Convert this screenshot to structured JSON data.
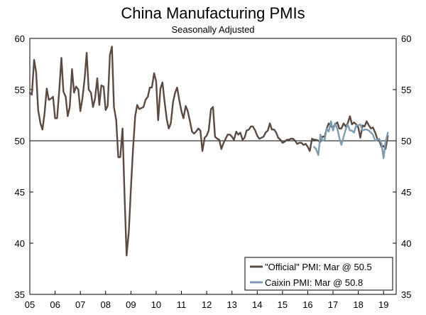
{
  "chart_data": {
    "type": "line",
    "title": "China Manufacturing PMIs",
    "subtitle": "Seasonally Adjusted",
    "xlabel": "",
    "ylabel": "",
    "ylim": [
      35,
      60
    ],
    "yticks": [
      35,
      40,
      45,
      50,
      55,
      60
    ],
    "xlim": [
      2005,
      2019.5
    ],
    "xticks": [
      2005,
      2006,
      2007,
      2008,
      2009,
      2010,
      2011,
      2012,
      2013,
      2014,
      2015,
      2016,
      2017,
      2018,
      2019
    ],
    "xtick_labels": [
      "05",
      "06",
      "07",
      "08",
      "09",
      "10",
      "11",
      "12",
      "13",
      "14",
      "15",
      "16",
      "17",
      "18",
      "19"
    ],
    "reference_line": 50,
    "legend_position": "bottom-right",
    "series": [
      {
        "name": "\"Official\" PMI: Mar @ 50.5",
        "color": "#5a4a42",
        "x": [
          2005.0,
          2005.08,
          2005.17,
          2005.25,
          2005.33,
          2005.42,
          2005.5,
          2005.58,
          2005.67,
          2005.75,
          2005.83,
          2005.92,
          2006.0,
          2006.08,
          2006.17,
          2006.25,
          2006.33,
          2006.42,
          2006.5,
          2006.58,
          2006.67,
          2006.75,
          2006.83,
          2006.92,
          2007.0,
          2007.08,
          2007.17,
          2007.25,
          2007.33,
          2007.42,
          2007.5,
          2007.58,
          2007.67,
          2007.75,
          2007.83,
          2007.92,
          2008.0,
          2008.08,
          2008.17,
          2008.25,
          2008.33,
          2008.42,
          2008.5,
          2008.58,
          2008.67,
          2008.75,
          2008.83,
          2008.92,
          2009.0,
          2009.08,
          2009.17,
          2009.25,
          2009.33,
          2009.42,
          2009.5,
          2009.58,
          2009.67,
          2009.75,
          2009.83,
          2009.92,
          2010.0,
          2010.08,
          2010.17,
          2010.25,
          2010.33,
          2010.42,
          2010.5,
          2010.58,
          2010.67,
          2010.75,
          2010.83,
          2010.92,
          2011.0,
          2011.08,
          2011.17,
          2011.25,
          2011.33,
          2011.42,
          2011.5,
          2011.58,
          2011.67,
          2011.75,
          2011.83,
          2011.92,
          2012.0,
          2012.08,
          2012.17,
          2012.25,
          2012.33,
          2012.42,
          2012.5,
          2012.58,
          2012.67,
          2012.75,
          2012.83,
          2012.92,
          2013.0,
          2013.08,
          2013.17,
          2013.25,
          2013.33,
          2013.42,
          2013.5,
          2013.58,
          2013.67,
          2013.75,
          2013.83,
          2013.92,
          2014.0,
          2014.08,
          2014.17,
          2014.25,
          2014.33,
          2014.42,
          2014.5,
          2014.58,
          2014.67,
          2014.75,
          2014.83,
          2014.92,
          2015.0,
          2015.08,
          2015.17,
          2015.25,
          2015.33,
          2015.42,
          2015.5,
          2015.58,
          2015.67,
          2015.75,
          2015.83,
          2015.92,
          2016.0,
          2016.08,
          2016.17,
          2016.25,
          2016.33,
          2016.42,
          2016.5,
          2016.58,
          2016.67,
          2016.75,
          2016.83,
          2016.92,
          2017.0,
          2017.08,
          2017.17,
          2017.25,
          2017.33,
          2017.42,
          2017.5,
          2017.58,
          2017.67,
          2017.75,
          2017.83,
          2017.92,
          2018.0,
          2018.08,
          2018.17,
          2018.25,
          2018.33,
          2018.42,
          2018.5,
          2018.58,
          2018.67,
          2018.75,
          2018.83,
          2018.92,
          2019.0,
          2019.08,
          2019.17
        ],
        "values": [
          54.7,
          54.5,
          57.9,
          56.7,
          53.0,
          51.7,
          51.1,
          52.6,
          55.1,
          54.0,
          54.1,
          54.3,
          52.2,
          52.2,
          55.1,
          58.1,
          54.8,
          54.3,
          52.4,
          53.3,
          57.0,
          54.7,
          55.3,
          55.0,
          52.9,
          54.1,
          56.1,
          58.6,
          55.0,
          54.7,
          53.3,
          54.1,
          56.1,
          53.5,
          55.4,
          55.3,
          53.0,
          53.4,
          58.4,
          59.2,
          53.3,
          52.0,
          48.4,
          48.4,
          51.2,
          44.6,
          38.8,
          41.2,
          45.3,
          49.0,
          52.4,
          53.5,
          53.1,
          53.2,
          53.3,
          54.0,
          54.3,
          55.2,
          55.2,
          56.6,
          55.8,
          52.0,
          55.1,
          55.7,
          53.9,
          52.1,
          51.2,
          51.7,
          53.8,
          54.7,
          55.2,
          53.9,
          52.9,
          52.2,
          53.4,
          52.9,
          52.0,
          50.9,
          50.7,
          50.9,
          51.2,
          51.0,
          49.0,
          50.3,
          50.5,
          51.0,
          53.1,
          53.3,
          50.4,
          50.2,
          50.1,
          49.2,
          49.8,
          50.2,
          50.6,
          50.6,
          50.4,
          50.1,
          50.9,
          50.6,
          50.8,
          50.1,
          50.3,
          51.0,
          51.1,
          51.4,
          51.4,
          51.0,
          50.5,
          50.2,
          50.3,
          50.4,
          50.8,
          51.0,
          51.7,
          51.1,
          51.1,
          50.8,
          50.3,
          50.1,
          49.8,
          49.9,
          50.1,
          50.1,
          50.2,
          50.2,
          50.0,
          49.7,
          49.8,
          49.8,
          49.6,
          49.7,
          49.4,
          49.0,
          50.2,
          50.1,
          50.1,
          50.0,
          49.9,
          50.4,
          50.4,
          51.2,
          51.7,
          51.4,
          51.3,
          51.6,
          51.8,
          51.2,
          51.2,
          51.7,
          51.4,
          51.7,
          52.4,
          51.6,
          51.8,
          51.6,
          51.3,
          50.3,
          51.5,
          51.4,
          51.9,
          51.5,
          51.2,
          51.3,
          50.8,
          50.2,
          50.0,
          49.4,
          49.5,
          49.2,
          50.5
        ]
      },
      {
        "name": "Caixin PMI: Mar @ 50.8",
        "color": "#7f9bb0",
        "x": [
          2016.25,
          2016.33,
          2016.42,
          2016.5,
          2016.58,
          2016.67,
          2016.75,
          2016.83,
          2016.92,
          2017.0,
          2017.08,
          2017.17,
          2017.25,
          2017.33,
          2017.42,
          2017.5,
          2017.58,
          2017.67,
          2017.75,
          2017.83,
          2017.92,
          2018.0,
          2018.08,
          2018.17,
          2018.25,
          2018.33,
          2018.42,
          2018.5,
          2018.58,
          2018.67,
          2018.75,
          2018.83,
          2018.92,
          2019.0,
          2019.08,
          2019.17
        ],
        "values": [
          49.4,
          49.2,
          48.6,
          50.6,
          50.0,
          50.1,
          51.2,
          50.9,
          51.9,
          51.0,
          51.7,
          51.2,
          50.3,
          49.6,
          50.4,
          51.1,
          51.6,
          51.0,
          51.0,
          50.8,
          51.5,
          51.5,
          51.6,
          51.0,
          51.1,
          51.1,
          51.0,
          50.8,
          50.6,
          50.0,
          50.1,
          50.2,
          49.7,
          48.3,
          49.9,
          50.8
        ]
      }
    ]
  }
}
